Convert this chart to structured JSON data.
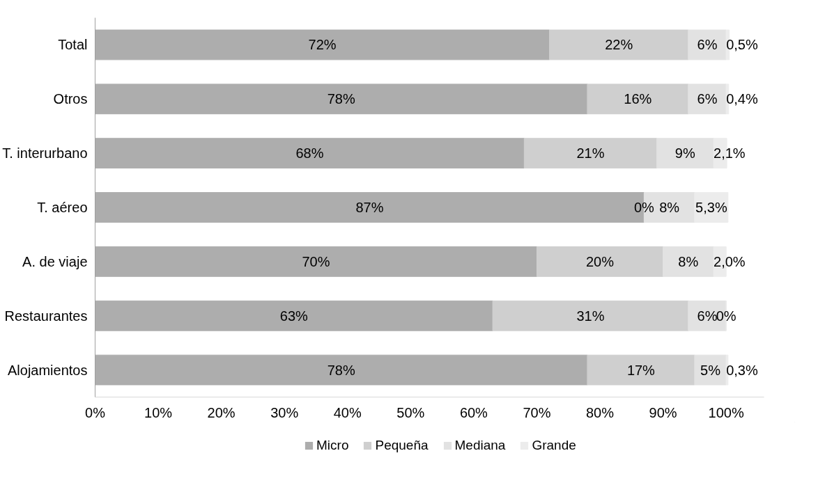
{
  "chart_data": {
    "type": "bar",
    "orientation": "horizontal",
    "stacked": true,
    "categories": [
      "Total",
      "Otros",
      "T. interurbano",
      "T. aéreo",
      "A. de viaje",
      "Restaurantes",
      "Alojamientos"
    ],
    "series": [
      {
        "name": "Micro",
        "color": "#adadad",
        "values": [
          72,
          78,
          68,
          87,
          70,
          63,
          78
        ],
        "value_labels": [
          "72%",
          "78%",
          "68%",
          "87%",
          "70%",
          "63%",
          "78%"
        ]
      },
      {
        "name": "Pequeña",
        "color": "#cfcfcf",
        "values": [
          22,
          16,
          21,
          0,
          20,
          31,
          17
        ],
        "value_labels": [
          "22%",
          "16%",
          "21%",
          "0%",
          "20%",
          "31%",
          "17%"
        ]
      },
      {
        "name": "Mediana",
        "color": "#e2e2e2",
        "values": [
          6,
          6,
          9,
          8,
          8,
          6,
          5
        ],
        "value_labels": [
          "6%",
          "6%",
          "9%",
          "8%",
          "8%",
          "6%",
          "5%"
        ]
      },
      {
        "name": "Grande",
        "color": "#ececec",
        "values": [
          0.5,
          0.4,
          2.1,
          5.3,
          2.0,
          0,
          0.3
        ],
        "value_labels": [
          "0,5%",
          "0,4%",
          "2,1%",
          "5,3%",
          "2,0%",
          "0%",
          "0,3%"
        ]
      }
    ],
    "xlim": [
      0,
      106
    ],
    "xticks": [
      {
        "value": 0,
        "label": "0%"
      },
      {
        "value": 10,
        "label": "10%"
      },
      {
        "value": 20,
        "label": "20%"
      },
      {
        "value": 30,
        "label": "30%"
      },
      {
        "value": 40,
        "label": "40%"
      },
      {
        "value": 50,
        "label": "50%"
      },
      {
        "value": 60,
        "label": "60%"
      },
      {
        "value": 70,
        "label": "70%"
      },
      {
        "value": 80,
        "label": "80%"
      },
      {
        "value": 90,
        "label": "90%"
      },
      {
        "value": 100,
        "label": "100%"
      }
    ],
    "grid": false,
    "legend": "bottom"
  }
}
